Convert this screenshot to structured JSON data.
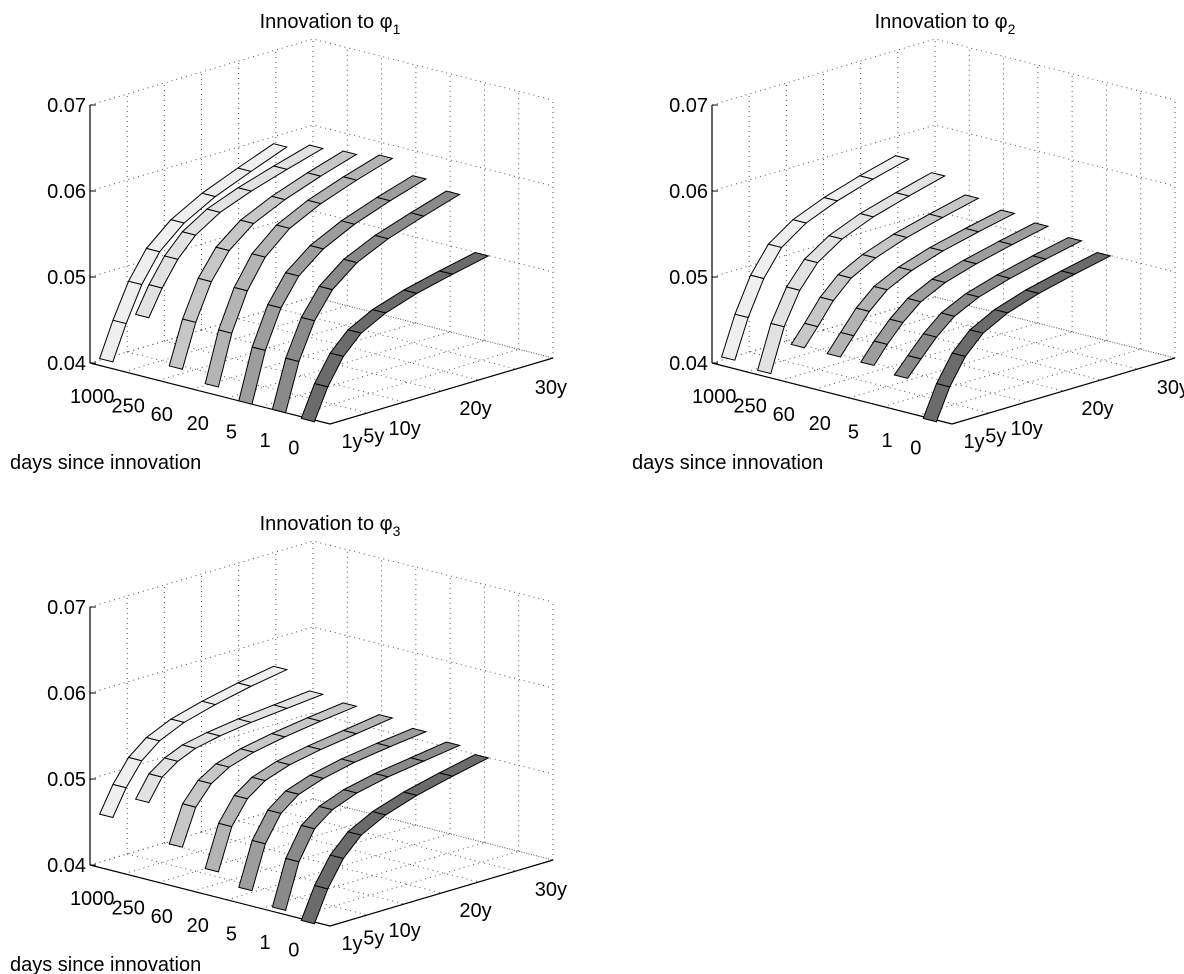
{
  "chart_data": [
    {
      "type": "3d-surface-ribbons",
      "title": "Innovation to φ",
      "title_subscript": "1",
      "zlim": [
        0.04,
        0.07
      ],
      "z_ticks": [
        "0.04",
        "0.05",
        "0.06",
        "0.07"
      ],
      "x_ticks": [
        "1000",
        "250",
        "60",
        "20",
        "5",
        "1",
        "0"
      ],
      "y_ticks": [
        "1y",
        "5y",
        "10y",
        "20y",
        "30y"
      ],
      "xlabel": "days since innovation",
      "grid": true,
      "series": [
        {
          "values": [
            0.0408,
            0.0448,
            0.0488,
            0.052,
            0.0545,
            0.0565,
            0.0582,
            0.0598
          ]
        },
        {
          "values": [
            0.047,
            0.05,
            0.0528,
            0.055,
            0.0568,
            0.0582,
            0.0595,
            0.0607
          ]
        },
        {
          "values": [
            0.042,
            0.047,
            0.0512,
            0.0542,
            0.0565,
            0.0582,
            0.0597,
            0.061
          ]
        },
        {
          "values": [
            0.041,
            0.0468,
            0.0512,
            0.0545,
            0.057,
            0.0588,
            0.0603,
            0.0616
          ]
        },
        {
          "values": [
            0.04,
            0.0458,
            0.0502,
            0.0533,
            0.0556,
            0.0574,
            0.0589,
            0.0602
          ]
        },
        {
          "values": [
            0.04,
            0.0455,
            0.0497,
            0.0527,
            0.055,
            0.0567,
            0.0581,
            0.0594
          ]
        },
        {
          "values": [
            0.0398,
            0.0434,
            0.0464,
            0.0485,
            0.05,
            0.0512,
            0.0522,
            0.0531
          ]
        }
      ]
    },
    {
      "type": "3d-surface-ribbons",
      "title": "Innovation to φ",
      "title_subscript": "2",
      "zlim": [
        0.04,
        0.07
      ],
      "z_ticks": [
        "0.04",
        "0.05",
        "0.06",
        "0.07"
      ],
      "x_ticks": [
        "1000",
        "250",
        "60",
        "20",
        "5",
        "1",
        "0"
      ],
      "y_ticks": [
        "1y",
        "5y",
        "10y",
        "20y",
        "30y"
      ],
      "xlabel": "days since innovation",
      "grid": true,
      "series": [
        {
          "values": [
            0.041,
            0.0455,
            0.0495,
            0.0525,
            0.0545,
            0.056,
            0.0573,
            0.0584
          ]
        },
        {
          "values": [
            0.0405,
            0.0455,
            0.0492,
            0.0518,
            0.0537,
            0.0552,
            0.0564,
            0.0575
          ]
        },
        {
          "values": [
            0.0445,
            0.0465,
            0.049,
            0.051,
            0.0525,
            0.0538,
            0.0549,
            0.0559
          ]
        },
        {
          "values": [
            0.0445,
            0.0465,
            0.0488,
            0.0507,
            0.0521,
            0.0533,
            0.0543,
            0.0552
          ]
        },
        {
          "values": [
            0.0445,
            0.0465,
            0.0485,
            0.0503,
            0.0517,
            0.0528,
            0.0538,
            0.0547
          ]
        },
        {
          "values": [
            0.044,
            0.0458,
            0.0478,
            0.0496,
            0.051,
            0.0521,
            0.0531,
            0.054
          ]
        },
        {
          "values": [
            0.0398,
            0.0434,
            0.0464,
            0.0485,
            0.05,
            0.0512,
            0.0522,
            0.0531
          ]
        }
      ]
    },
    {
      "type": "3d-surface-ribbons",
      "title": "Innovation to φ",
      "title_subscript": "3",
      "zlim": [
        0.04,
        0.07
      ],
      "z_ticks": [
        "0.04",
        "0.05",
        "0.06",
        "0.07"
      ],
      "x_ticks": [
        "1000",
        "250",
        "60",
        "20",
        "5",
        "1",
        "0"
      ],
      "y_ticks": [
        "1y",
        "5y",
        "10y",
        "20y",
        "30y"
      ],
      "xlabel": "days since innovation",
      "grid": true,
      "series": [
        {
          "values": [
            0.0462,
            0.0492,
            0.0518,
            0.0535,
            0.0548,
            0.0558,
            0.0567,
            0.0574
          ]
        },
        {
          "values": [
            0.049,
            0.0515,
            0.0528,
            0.0537,
            0.0543,
            0.0548,
            0.0552,
            0.0556
          ]
        },
        {
          "values": [
            0.0448,
            0.049,
            0.0512,
            0.0525,
            0.0534,
            0.0541,
            0.0547,
            0.0552
          ]
        },
        {
          "values": [
            0.043,
            0.0478,
            0.0505,
            0.052,
            0.053,
            0.0537,
            0.0543,
            0.0549
          ]
        },
        {
          "values": [
            0.0418,
            0.0468,
            0.0498,
            0.0514,
            0.0524,
            0.0532,
            0.0538,
            0.0543
          ]
        },
        {
          "values": [
            0.0405,
            0.0457,
            0.049,
            0.0506,
            0.0517,
            0.0525,
            0.0531,
            0.0537
          ]
        },
        {
          "values": [
            0.0398,
            0.0434,
            0.0464,
            0.0485,
            0.05,
            0.0512,
            0.0522,
            0.0531
          ]
        }
      ]
    }
  ]
}
